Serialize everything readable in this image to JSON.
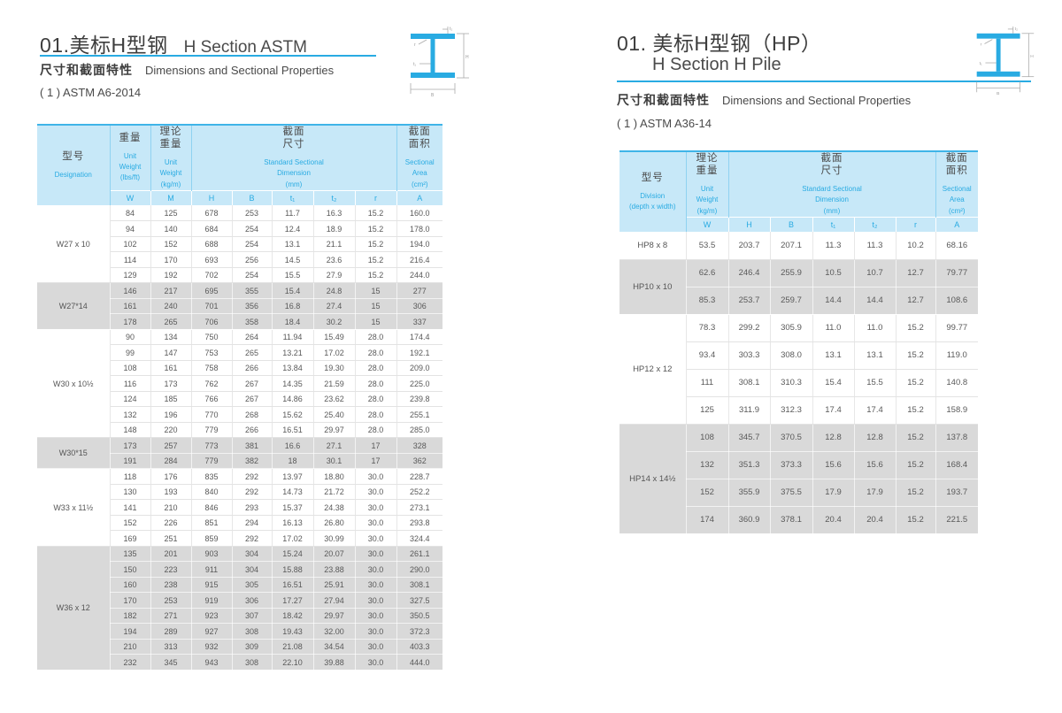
{
  "accent": "#29abe2",
  "left": {
    "title_zh": "01.美标H型钢",
    "title_en": "H Section ASTM",
    "subtitle_zh": "尺寸和截面特性",
    "subtitle_en": "Dimensions and Sectional Properties",
    "standard": "( 1 ) ASTM A6-2014",
    "table": {
      "headers": {
        "designation_zh": "型号",
        "designation_en": "Designation",
        "weight_zh": "重量",
        "weight_en": "Unit\nWeight\n(lbs/ft)",
        "theoretical_zh": "理论\n重量",
        "theoretical_en": "Unit\nWeight\n(kg/m)",
        "dimension_zh": "截面\n尺寸",
        "dimension_en": "Standard Sectional\nDimension\n(mm)",
        "area_zh": "截面\n面积",
        "area_en": "Sectional\nArea\n(cm²)"
      },
      "unit_row": [
        "W",
        "M",
        "H",
        "B",
        "t₁",
        "t₂",
        "r",
        "A"
      ],
      "groups": [
        {
          "designation": "W27 x 10",
          "shaded": false,
          "rows": [
            [
              "84",
              "125",
              "678",
              "253",
              "11.7",
              "16.3",
              "15.2",
              "160.0"
            ],
            [
              "94",
              "140",
              "684",
              "254",
              "12.4",
              "18.9",
              "15.2",
              "178.0"
            ],
            [
              "102",
              "152",
              "688",
              "254",
              "13.1",
              "21.1",
              "15.2",
              "194.0"
            ],
            [
              "114",
              "170",
              "693",
              "256",
              "14.5",
              "23.6",
              "15.2",
              "216.4"
            ],
            [
              "129",
              "192",
              "702",
              "254",
              "15.5",
              "27.9",
              "15.2",
              "244.0"
            ]
          ]
        },
        {
          "designation": "W27*14",
          "shaded": true,
          "rows": [
            [
              "146",
              "217",
              "695",
              "355",
              "15.4",
              "24.8",
              "15",
              "277"
            ],
            [
              "161",
              "240",
              "701",
              "356",
              "16.8",
              "27.4",
              "15",
              "306"
            ],
            [
              "178",
              "265",
              "706",
              "358",
              "18.4",
              "30.2",
              "15",
              "337"
            ]
          ]
        },
        {
          "designation": "W30 x 10½",
          "shaded": false,
          "rows": [
            [
              "90",
              "134",
              "750",
              "264",
              "11.94",
              "15.49",
              "28.0",
              "174.4"
            ],
            [
              "99",
              "147",
              "753",
              "265",
              "13.21",
              "17.02",
              "28.0",
              "192.1"
            ],
            [
              "108",
              "161",
              "758",
              "266",
              "13.84",
              "19.30",
              "28.0",
              "209.0"
            ],
            [
              "116",
              "173",
              "762",
              "267",
              "14.35",
              "21.59",
              "28.0",
              "225.0"
            ],
            [
              "124",
              "185",
              "766",
              "267",
              "14.86",
              "23.62",
              "28.0",
              "239.8"
            ],
            [
              "132",
              "196",
              "770",
              "268",
              "15.62",
              "25.40",
              "28.0",
              "255.1"
            ],
            [
              "148",
              "220",
              "779",
              "266",
              "16.51",
              "29.97",
              "28.0",
              "285.0"
            ]
          ]
        },
        {
          "designation": "W30*15",
          "shaded": true,
          "rows": [
            [
              "173",
              "257",
              "773",
              "381",
              "16.6",
              "27.1",
              "17",
              "328"
            ],
            [
              "191",
              "284",
              "779",
              "382",
              "18",
              "30.1",
              "17",
              "362"
            ]
          ]
        },
        {
          "designation": "W33 x 11½",
          "shaded": false,
          "rows": [
            [
              "118",
              "176",
              "835",
              "292",
              "13.97",
              "18.80",
              "30.0",
              "228.7"
            ],
            [
              "130",
              "193",
              "840",
              "292",
              "14.73",
              "21.72",
              "30.0",
              "252.2"
            ],
            [
              "141",
              "210",
              "846",
              "293",
              "15.37",
              "24.38",
              "30.0",
              "273.1"
            ],
            [
              "152",
              "226",
              "851",
              "294",
              "16.13",
              "26.80",
              "30.0",
              "293.8"
            ],
            [
              "169",
              "251",
              "859",
              "292",
              "17.02",
              "30.99",
              "30.0",
              "324.4"
            ]
          ]
        },
        {
          "designation": "W36 x 12",
          "shaded": true,
          "rows": [
            [
              "135",
              "201",
              "903",
              "304",
              "15.24",
              "20.07",
              "30.0",
              "261.1"
            ],
            [
              "150",
              "223",
              "911",
              "304",
              "15.88",
              "23.88",
              "30.0",
              "290.0"
            ],
            [
              "160",
              "238",
              "915",
              "305",
              "16.51",
              "25.91",
              "30.0",
              "308.1"
            ],
            [
              "170",
              "253",
              "919",
              "306",
              "17.27",
              "27.94",
              "30.0",
              "327.5"
            ],
            [
              "182",
              "271",
              "923",
              "307",
              "18.42",
              "29.97",
              "30.0",
              "350.5"
            ],
            [
              "194",
              "289",
              "927",
              "308",
              "19.43",
              "32.00",
              "30.0",
              "372.3"
            ],
            [
              "210",
              "313",
              "932",
              "309",
              "21.08",
              "34.54",
              "30.0",
              "403.3"
            ],
            [
              "232",
              "345",
              "943",
              "308",
              "22.10",
              "39.88",
              "30.0",
              "444.0"
            ]
          ]
        }
      ]
    }
  },
  "right": {
    "title_zh": "01. 美标H型钢（HP）",
    "title_en": "H Section  H Pile",
    "subtitle_zh": "尺寸和截面特性",
    "subtitle_en": "Dimensions and Sectional Properties",
    "standard": "( 1 ) ASTM A36-14",
    "table": {
      "headers": {
        "designation_zh": "型号",
        "designation_en": "Division\n(depth x width)",
        "theoretical_zh": "理论\n重量",
        "theoretical_en": "Unit\nWeight\n(kg/m)",
        "dimension_zh": "截面\n尺寸",
        "dimension_en": "Standard Sectional\nDimension\n(mm)",
        "area_zh": "截面\n面积",
        "area_en": "Sectional\nArea\n(cm²)"
      },
      "unit_row": [
        "W",
        "H",
        "B",
        "t₁",
        "t₂",
        "r",
        "A"
      ],
      "groups": [
        {
          "designation": "HP8 x 8",
          "shaded": false,
          "rows": [
            [
              "53.5",
              "203.7",
              "207.1",
              "11.3",
              "11.3",
              "10.2",
              "68.16"
            ]
          ]
        },
        {
          "designation": "HP10 x 10",
          "shaded": true,
          "rows": [
            [
              "62.6",
              "246.4",
              "255.9",
              "10.5",
              "10.7",
              "12.7",
              "79.77"
            ],
            [
              "85.3",
              "253.7",
              "259.7",
              "14.4",
              "14.4",
              "12.7",
              "108.6"
            ]
          ]
        },
        {
          "designation": "HP12 x 12",
          "shaded": false,
          "rows": [
            [
              "78.3",
              "299.2",
              "305.9",
              "11.0",
              "11.0",
              "15.2",
              "99.77"
            ],
            [
              "93.4",
              "303.3",
              "308.0",
              "13.1",
              "13.1",
              "15.2",
              "119.0"
            ],
            [
              "111",
              "308.1",
              "310.3",
              "15.4",
              "15.5",
              "15.2",
              "140.8"
            ],
            [
              "125",
              "311.9",
              "312.3",
              "17.4",
              "17.4",
              "15.2",
              "158.9"
            ]
          ]
        },
        {
          "designation": "HP14 x 14½",
          "shaded": true,
          "rows": [
            [
              "108",
              "345.7",
              "370.5",
              "12.8",
              "12.8",
              "15.2",
              "137.8"
            ],
            [
              "132",
              "351.3",
              "373.3",
              "15.6",
              "15.6",
              "15.2",
              "168.4"
            ],
            [
              "152",
              "355.9",
              "375.5",
              "17.9",
              "17.9",
              "15.2",
              "193.7"
            ],
            [
              "174",
              "360.9",
              "378.1",
              "20.4",
              "20.4",
              "15.2",
              "221.5"
            ]
          ]
        }
      ]
    }
  }
}
